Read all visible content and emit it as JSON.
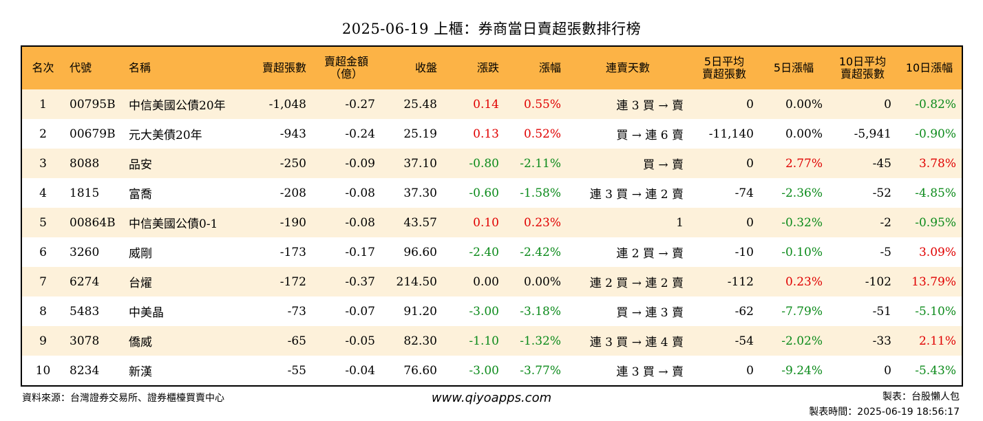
{
  "title": "2025-06-19 上櫃：券商當日賣超張數排行榜",
  "headers": {
    "rank": "名次",
    "code": "代號",
    "name": "名稱",
    "sell_lots": "賣超張數",
    "sell_amount_l1": "賣超金額",
    "sell_amount_l2": "（億）",
    "close": "收盤",
    "change": "漲跌",
    "change_pct": "漲幅",
    "streak": "連賣天數",
    "avg5_l1": "5日平均",
    "avg5_l2": "賣超張數",
    "pct5": "5日漲幅",
    "avg10_l1": "10日平均",
    "avg10_l2": "賣超張數",
    "pct10": "10日漲幅"
  },
  "rows": [
    {
      "rank": "1",
      "code": "00795B",
      "name": "中信美國公債20年",
      "sell_lots": "-1,048",
      "sell_amount": "-0.27",
      "close": "25.48",
      "change": "0.14",
      "change_dir": "up",
      "change_pct": "0.55%",
      "change_pct_dir": "up",
      "streak": "連 3 買 → 賣",
      "avg5": "0",
      "pct5": "0.00%",
      "pct5_dir": "flat",
      "avg10": "0",
      "pct10": "-0.82%",
      "pct10_dir": "down"
    },
    {
      "rank": "2",
      "code": "00679B",
      "name": "元大美債20年",
      "sell_lots": "-943",
      "sell_amount": "-0.24",
      "close": "25.19",
      "change": "0.13",
      "change_dir": "up",
      "change_pct": "0.52%",
      "change_pct_dir": "up",
      "streak": "買 → 連 6 賣",
      "avg5": "-11,140",
      "pct5": "0.00%",
      "pct5_dir": "flat",
      "avg10": "-5,941",
      "pct10": "-0.90%",
      "pct10_dir": "down"
    },
    {
      "rank": "3",
      "code": "8088",
      "name": "品安",
      "sell_lots": "-250",
      "sell_amount": "-0.09",
      "close": "37.10",
      "change": "-0.80",
      "change_dir": "down",
      "change_pct": "-2.11%",
      "change_pct_dir": "down",
      "streak": "買 → 賣",
      "avg5": "0",
      "pct5": "2.77%",
      "pct5_dir": "up",
      "avg10": "-45",
      "pct10": "3.78%",
      "pct10_dir": "up"
    },
    {
      "rank": "4",
      "code": "1815",
      "name": "富喬",
      "sell_lots": "-208",
      "sell_amount": "-0.08",
      "close": "37.30",
      "change": "-0.60",
      "change_dir": "down",
      "change_pct": "-1.58%",
      "change_pct_dir": "down",
      "streak": "連 3 買 → 連 2 賣",
      "avg5": "-74",
      "pct5": "-2.36%",
      "pct5_dir": "down",
      "avg10": "-52",
      "pct10": "-4.85%",
      "pct10_dir": "down"
    },
    {
      "rank": "5",
      "code": "00864B",
      "name": "中信美國公債0-1",
      "sell_lots": "-190",
      "sell_amount": "-0.08",
      "close": "43.57",
      "change": "0.10",
      "change_dir": "up",
      "change_pct": "0.23%",
      "change_pct_dir": "up",
      "streak": "1",
      "avg5": "0",
      "pct5": "-0.32%",
      "pct5_dir": "down",
      "avg10": "-2",
      "pct10": "-0.95%",
      "pct10_dir": "down"
    },
    {
      "rank": "6",
      "code": "3260",
      "name": "威剛",
      "sell_lots": "-173",
      "sell_amount": "-0.17",
      "close": "96.60",
      "change": "-2.40",
      "change_dir": "down",
      "change_pct": "-2.42%",
      "change_pct_dir": "down",
      "streak": "連 2 買 → 賣",
      "avg5": "-10",
      "pct5": "-0.10%",
      "pct5_dir": "down",
      "avg10": "-5",
      "pct10": "3.09%",
      "pct10_dir": "up"
    },
    {
      "rank": "7",
      "code": "6274",
      "name": "台燿",
      "sell_lots": "-172",
      "sell_amount": "-0.37",
      "close": "214.50",
      "change": "0.00",
      "change_dir": "flat",
      "change_pct": "0.00%",
      "change_pct_dir": "flat",
      "streak": "連 2 買 → 連 2 賣",
      "avg5": "-112",
      "pct5": "0.23%",
      "pct5_dir": "up",
      "avg10": "-102",
      "pct10": "13.79%",
      "pct10_dir": "up"
    },
    {
      "rank": "8",
      "code": "5483",
      "name": "中美晶",
      "sell_lots": "-73",
      "sell_amount": "-0.07",
      "close": "91.20",
      "change": "-3.00",
      "change_dir": "down",
      "change_pct": "-3.18%",
      "change_pct_dir": "down",
      "streak": "買 → 連 3 賣",
      "avg5": "-62",
      "pct5": "-7.79%",
      "pct5_dir": "down",
      "avg10": "-51",
      "pct10": "-5.10%",
      "pct10_dir": "down"
    },
    {
      "rank": "9",
      "code": "3078",
      "name": "僑威",
      "sell_lots": "-65",
      "sell_amount": "-0.05",
      "close": "82.30",
      "change": "-1.10",
      "change_dir": "down",
      "change_pct": "-1.32%",
      "change_pct_dir": "down",
      "streak": "連 3 買 → 連 4 賣",
      "avg5": "-54",
      "pct5": "-2.02%",
      "pct5_dir": "down",
      "avg10": "-33",
      "pct10": "2.11%",
      "pct10_dir": "up"
    },
    {
      "rank": "10",
      "code": "8234",
      "name": "新漢",
      "sell_lots": "-55",
      "sell_amount": "-0.04",
      "close": "76.60",
      "change": "-3.00",
      "change_dir": "down",
      "change_pct": "-3.77%",
      "change_pct_dir": "down",
      "streak": "連 3 買 → 賣",
      "avg5": "0",
      "pct5": "-9.24%",
      "pct5_dir": "down",
      "avg10": "0",
      "pct10": "-5.43%",
      "pct10_dir": "down"
    }
  ],
  "colors": {
    "up": "#e00000",
    "down": "#0b8a1a",
    "header_bg": "#fcb346",
    "stripe_bg": "#fdf1da"
  },
  "footer": {
    "source": "資料來源：台灣證券交易所、證券櫃檯買賣中心",
    "website": "www.qiyoapps.com",
    "maker": "製表：台股懶人包",
    "made_time": "製表時間：2025-06-19 18:56:17"
  }
}
